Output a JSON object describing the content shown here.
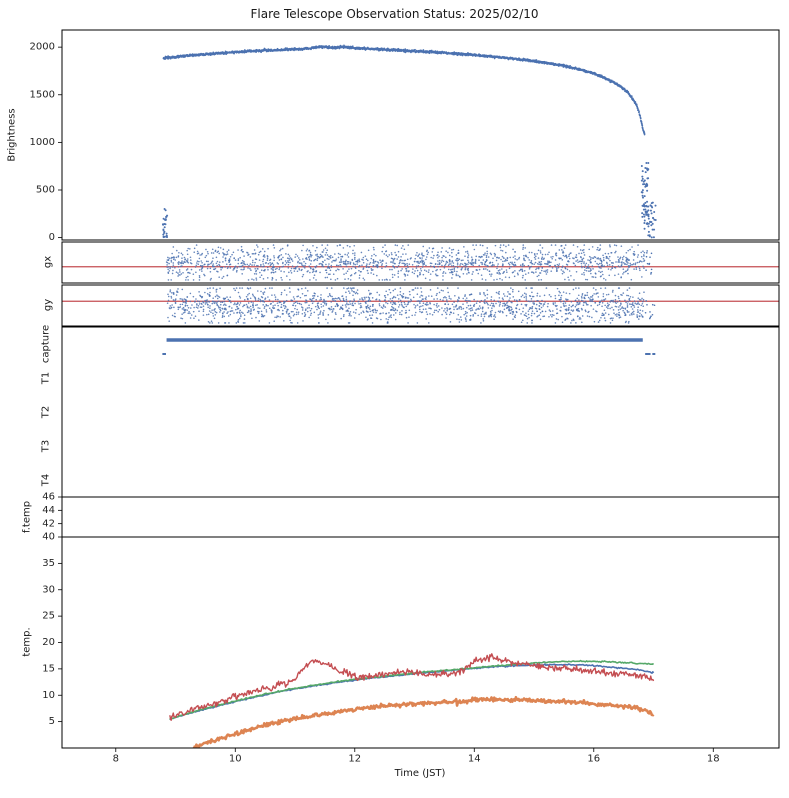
{
  "title": "Flare Telescope Observation Status: 2025/02/10",
  "colors": {
    "blue": "#4C72B0",
    "red": "#C44E52",
    "green": "#55A868",
    "orange": "#DD8452",
    "frame": "#000000",
    "text": "#262626"
  },
  "x_axis": {
    "label": "Time (JST)",
    "lim": [
      7.1,
      19.1
    ],
    "ticks": [
      8,
      10,
      12,
      14,
      16,
      18
    ]
  },
  "chart_data": [
    {
      "id": "brightness",
      "type": "scatter",
      "ylabel": "Brightness",
      "ylim": [
        -25,
        2180
      ],
      "yticks": [
        0,
        500,
        1000,
        1500,
        2000
      ],
      "series": [
        {
          "name": "sun-brightness-curve",
          "color": "blue",
          "style": "noisy-curve-dots",
          "noise": 6,
          "dot": 0.9,
          "step": 0.004,
          "points": [
            [
              8.8,
              1885
            ],
            [
              9.2,
              1910
            ],
            [
              9.6,
              1930
            ],
            [
              10,
              1948
            ],
            [
              10.4,
              1962
            ],
            [
              10.8,
              1972
            ],
            [
              11.2,
              1985
            ],
            [
              11.45,
              2005
            ],
            [
              11.6,
              1994
            ],
            [
              11.8,
              1998
            ],
            [
              12,
              1990
            ],
            [
              12.4,
              1978
            ],
            [
              12.8,
              1966
            ],
            [
              13.2,
              1952
            ],
            [
              13.6,
              1936
            ],
            [
              14,
              1917
            ],
            [
              14.4,
              1895
            ],
            [
              14.8,
              1868
            ],
            [
              15.2,
              1834
            ],
            [
              15.6,
              1790
            ],
            [
              16,
              1722
            ],
            [
              16.3,
              1640
            ],
            [
              16.5,
              1560
            ],
            [
              16.65,
              1460
            ],
            [
              16.75,
              1330
            ],
            [
              16.82,
              1150
            ],
            [
              16.85,
              1085
            ]
          ]
        },
        {
          "name": "start-cluster",
          "color": "blue",
          "style": "cluster",
          "x_range": [
            8.79,
            8.86
          ],
          "y_range": [
            0,
            310
          ],
          "count": 26,
          "dot": 1.0
        },
        {
          "name": "end-cluster-high",
          "color": "blue",
          "style": "cluster",
          "x_range": [
            16.8,
            16.92
          ],
          "y_range": [
            180,
            790
          ],
          "count": 55,
          "dot": 1.0
        },
        {
          "name": "end-cluster-low",
          "color": "blue",
          "style": "cluster",
          "x_range": [
            16.84,
            17.04
          ],
          "y_range": [
            0,
            380
          ],
          "count": 45,
          "dot": 1.0
        }
      ]
    },
    {
      "id": "gx",
      "type": "scatter",
      "ylabel": "gx",
      "ylim": [
        -1.2,
        1.2
      ],
      "ref_line": {
        "y": -0.25,
        "color": "red"
      },
      "series": [
        {
          "name": "gx-guide-error-band",
          "color": "blue",
          "style": "band",
          "x_range": [
            8.85,
            16.85
          ],
          "sigma": 0.5,
          "clip": 1.02,
          "count": 1600,
          "dot": 0.8
        },
        {
          "name": "gx-tail",
          "color": "blue",
          "style": "cluster",
          "x_range": [
            16.86,
            17.03
          ],
          "y_range": [
            -0.7,
            0.7
          ],
          "count": 12,
          "dot": 0.8
        }
      ]
    },
    {
      "id": "gy",
      "type": "scatter",
      "ylabel": "gy",
      "ylim": [
        -1.2,
        1.2
      ],
      "ref_line": {
        "y": 0.25,
        "color": "red"
      },
      "series": [
        {
          "name": "gy-guide-error-band",
          "color": "blue",
          "style": "band",
          "x_range": [
            8.85,
            16.85
          ],
          "sigma": 0.5,
          "clip": 1.02,
          "count": 1600,
          "dot": 0.8
        },
        {
          "name": "gy-tail",
          "color": "blue",
          "style": "cluster",
          "x_range": [
            16.86,
            17.03
          ],
          "y_range": [
            -0.8,
            0.3
          ],
          "count": 10,
          "dot": 0.8
        }
      ]
    },
    {
      "id": "capture",
      "type": "status",
      "row_labels": [
        "capture",
        "T1",
        "T2",
        "T3",
        "T4"
      ],
      "series": [
        {
          "name": "capture-on",
          "row": 0,
          "level": 1,
          "color": "blue",
          "width": 3.5,
          "x_range": [
            8.85,
            16.82
          ]
        },
        {
          "name": "capture-off-start",
          "row": 0,
          "level": 0,
          "color": "blue",
          "width": 2,
          "x_range": [
            8.78,
            8.84
          ]
        },
        {
          "name": "capture-off-end-1",
          "row": 0,
          "level": 0,
          "color": "blue",
          "width": 2,
          "x_range": [
            16.86,
            16.95
          ]
        },
        {
          "name": "capture-off-end-2",
          "row": 0,
          "level": 0,
          "color": "blue",
          "width": 2,
          "x_range": [
            16.98,
            17.03
          ]
        }
      ]
    },
    {
      "id": "ftemp",
      "type": "line",
      "ylabel": "f.temp",
      "ylim": [
        40,
        46
      ],
      "yticks": [
        40,
        42,
        44,
        46
      ],
      "series": []
    },
    {
      "id": "temp",
      "type": "line",
      "ylabel": "temp.",
      "ylim": [
        0,
        40
      ],
      "yticks": [
        5,
        10,
        15,
        20,
        25,
        30,
        35
      ],
      "series": [
        {
          "name": "temp-blue",
          "color": "blue",
          "style": "noisy-line",
          "noise": 0.06,
          "width": 1.6,
          "step": 0.02,
          "points": [
            [
              8.9,
              5.5
            ],
            [
              9.5,
              7.4
            ],
            [
              10,
              8.8
            ],
            [
              10.5,
              10.1
            ],
            [
              11,
              11.2
            ],
            [
              11.5,
              12.1
            ],
            [
              12,
              12.9
            ],
            [
              12.5,
              13.5
            ],
            [
              13,
              14.1
            ],
            [
              13.5,
              14.6
            ],
            [
              14,
              15.1
            ],
            [
              14.5,
              15.5
            ],
            [
              15,
              15.7
            ],
            [
              15.5,
              15.8
            ],
            [
              16,
              15.6
            ],
            [
              16.5,
              15.1
            ],
            [
              16.8,
              14.7
            ],
            [
              17,
              14.3
            ]
          ]
        },
        {
          "name": "temp-green",
          "color": "green",
          "style": "noisy-line",
          "noise": 0.06,
          "width": 1.6,
          "step": 0.02,
          "points": [
            [
              8.9,
              5.5
            ],
            [
              9.5,
              7.5
            ],
            [
              10,
              8.9
            ],
            [
              10.5,
              10.2
            ],
            [
              11,
              11.3
            ],
            [
              11.5,
              12.2
            ],
            [
              12,
              13
            ],
            [
              12.5,
              13.6
            ],
            [
              13,
              14.2
            ],
            [
              13.5,
              14.7
            ],
            [
              14,
              15.2
            ],
            [
              14.5,
              15.7
            ],
            [
              15,
              16.1
            ],
            [
              15.5,
              16.4
            ],
            [
              16,
              16.4
            ],
            [
              16.5,
              16.2
            ],
            [
              17,
              15.9
            ]
          ]
        },
        {
          "name": "temp-orange",
          "color": "orange",
          "style": "noisy-line",
          "noise": 0.2,
          "width": 2.6,
          "step": 0.015,
          "points": [
            [
              9.3,
              0.2
            ],
            [
              9.5,
              0.9
            ],
            [
              10,
              2.7
            ],
            [
              10.5,
              4.3
            ],
            [
              11,
              5.5
            ],
            [
              11.5,
              6.5
            ],
            [
              12,
              7.3
            ],
            [
              12.5,
              8
            ],
            [
              13,
              8.4
            ],
            [
              13.5,
              8.7
            ],
            [
              14,
              9.1
            ],
            [
              14.5,
              9.2
            ],
            [
              15,
              9
            ],
            [
              15.5,
              8.8
            ],
            [
              16,
              8.4
            ],
            [
              16.5,
              7.9
            ],
            [
              16.8,
              7.3
            ],
            [
              17,
              6.4
            ]
          ]
        },
        {
          "name": "temp-red",
          "color": "red",
          "style": "noisy-line",
          "noise": 0.3,
          "width": 1.4,
          "step": 0.015,
          "points": [
            [
              8.9,
              5.8
            ],
            [
              9.3,
              7.3
            ],
            [
              9.7,
              8.6
            ],
            [
              10,
              9.8
            ],
            [
              10.4,
              11
            ],
            [
              10.8,
              12.2
            ],
            [
              11,
              13.2
            ],
            [
              11.15,
              15.2
            ],
            [
              11.3,
              16.4
            ],
            [
              11.5,
              16
            ],
            [
              11.7,
              14.8
            ],
            [
              11.9,
              13.9
            ],
            [
              12.1,
              13.4
            ],
            [
              12.4,
              13.9
            ],
            [
              12.7,
              14.4
            ],
            [
              12.9,
              14.5
            ],
            [
              13.2,
              13.9
            ],
            [
              13.5,
              14
            ],
            [
              13.8,
              14.8
            ],
            [
              14,
              16.3
            ],
            [
              14.2,
              17.1
            ],
            [
              14.4,
              16.9
            ],
            [
              14.6,
              16.3
            ],
            [
              15,
              15.7
            ],
            [
              15.4,
              15.2
            ],
            [
              15.8,
              14.8
            ],
            [
              16.2,
              14.4
            ],
            [
              16.6,
              13.9
            ],
            [
              16.8,
              13.5
            ],
            [
              17,
              13
            ]
          ]
        }
      ]
    }
  ]
}
